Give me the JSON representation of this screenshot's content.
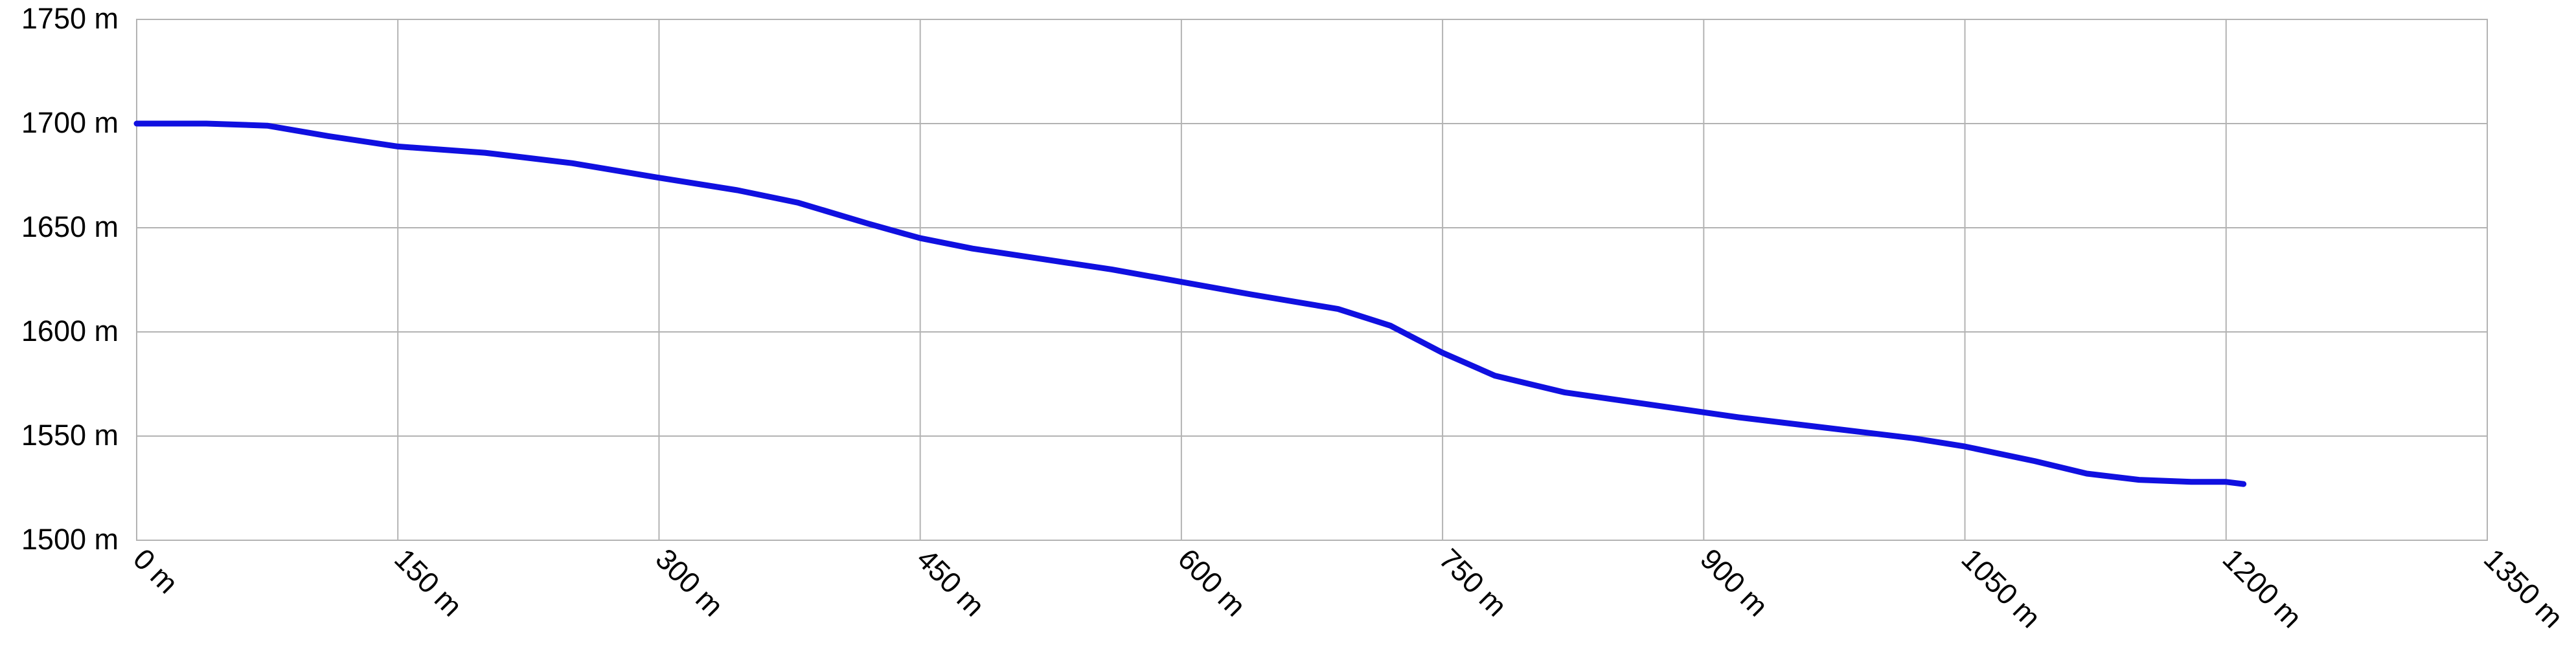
{
  "chart_data": {
    "type": "line",
    "title": "",
    "xlabel": "",
    "ylabel": "",
    "xlim": [
      0,
      1350
    ],
    "ylim": [
      1500,
      1750
    ],
    "x_ticks": [
      0,
      150,
      300,
      450,
      600,
      750,
      900,
      1050,
      1200,
      1350
    ],
    "x_tick_labels": [
      "0 m",
      "150 m",
      "300 m",
      "450 m",
      "600 m",
      "750 m",
      "900 m",
      "1050 m",
      "1200 m",
      "1350 m"
    ],
    "y_ticks": [
      1500,
      1550,
      1600,
      1650,
      1700,
      1750
    ],
    "y_tick_labels": [
      "1500 m",
      "1550 m",
      "1600 m",
      "1650 m",
      "1700 m",
      "1750 m"
    ],
    "grid": true,
    "legend": "none",
    "series": [
      {
        "color": "#1010e0",
        "points": [
          [
            0,
            1700
          ],
          [
            40,
            1700
          ],
          [
            75,
            1699
          ],
          [
            110,
            1694
          ],
          [
            150,
            1689
          ],
          [
            200,
            1686
          ],
          [
            250,
            1681
          ],
          [
            300,
            1674
          ],
          [
            345,
            1668
          ],
          [
            380,
            1662
          ],
          [
            420,
            1652
          ],
          [
            450,
            1645
          ],
          [
            480,
            1640
          ],
          [
            520,
            1635
          ],
          [
            560,
            1630
          ],
          [
            600,
            1624
          ],
          [
            640,
            1618
          ],
          [
            690,
            1611
          ],
          [
            720,
            1603
          ],
          [
            750,
            1590
          ],
          [
            780,
            1579
          ],
          [
            820,
            1571
          ],
          [
            870,
            1565
          ],
          [
            920,
            1559
          ],
          [
            970,
            1554
          ],
          [
            1020,
            1549
          ],
          [
            1050,
            1545
          ],
          [
            1090,
            1538
          ],
          [
            1120,
            1532
          ],
          [
            1150,
            1529
          ],
          [
            1180,
            1528
          ],
          [
            1200,
            1528
          ],
          [
            1210,
            1527
          ]
        ]
      }
    ]
  }
}
